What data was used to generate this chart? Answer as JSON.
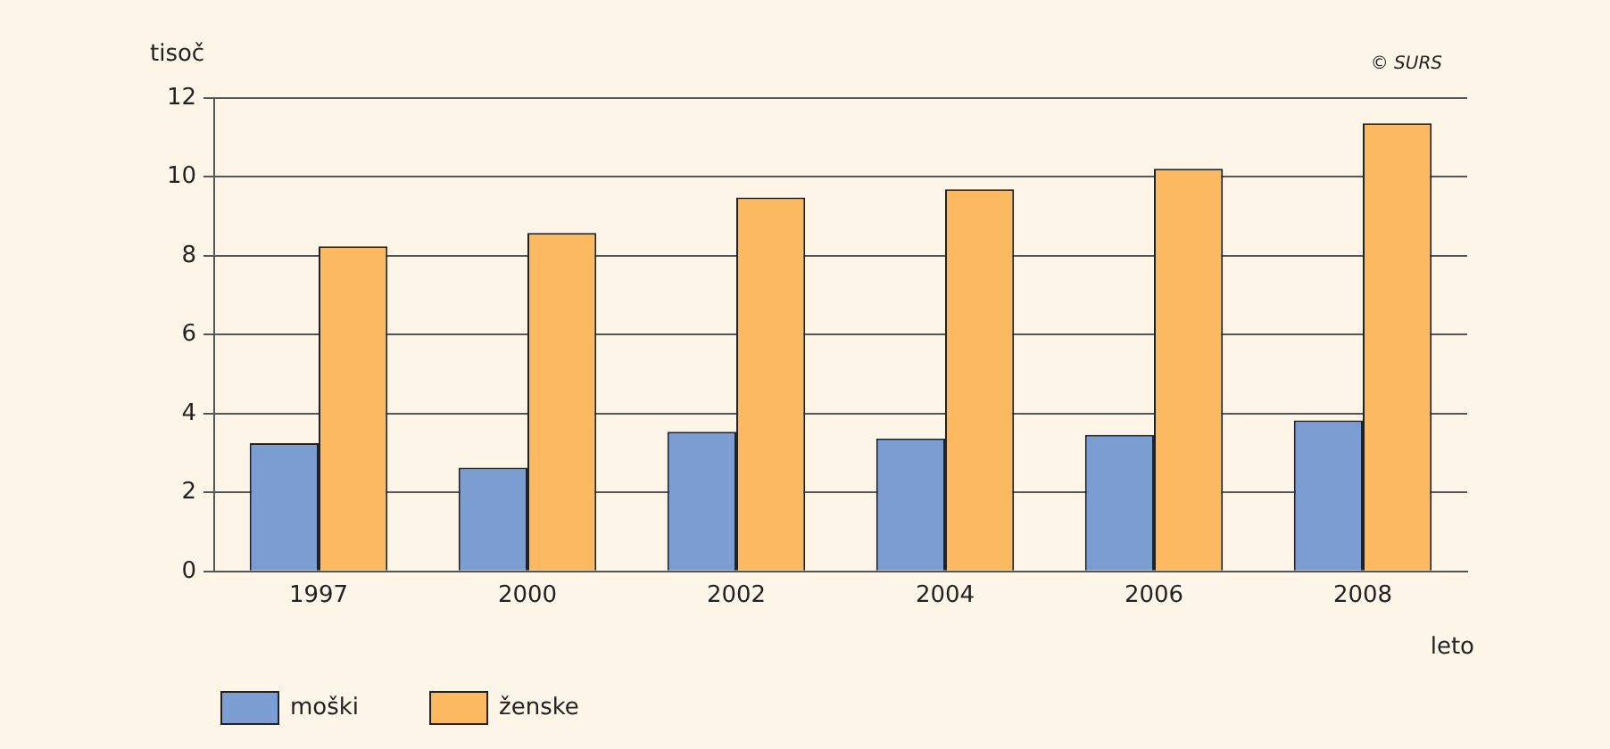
{
  "chart_data": {
    "type": "bar",
    "ylabel": "tisoč",
    "xlabel": "leto",
    "annotations": [
      "© SURS"
    ],
    "categories": [
      "1997",
      "2000",
      "2002",
      "2004",
      "2006",
      "2008"
    ],
    "series": [
      {
        "name": "moški",
        "color": "#7b9dd2",
        "values": [
          3.25,
          2.63,
          3.54,
          3.37,
          3.46,
          3.83
        ]
      },
      {
        "name": "ženske",
        "color": "#fdb95f",
        "values": [
          8.24,
          8.58,
          9.48,
          9.69,
          10.21,
          11.36
        ]
      }
    ],
    "ylim": [
      0,
      12
    ],
    "yticks": [
      0,
      2,
      4,
      6,
      8,
      10,
      12
    ],
    "grid": "y",
    "legend": "bottom left"
  }
}
